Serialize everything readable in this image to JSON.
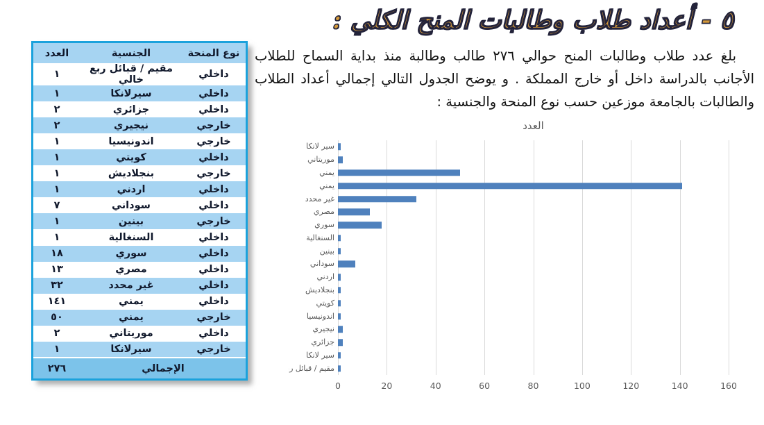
{
  "page": {
    "title": "٥ - أعداد طلاب وطالبات المنح الكلي :",
    "paragraph": "بلغ عدد طلاب وطالبات المنح حوالي ٢٧٦ طالب وطالبة منذ بداية  السماح للطلاب الأجانب بالدراسة داخل أو خارج المملكة . و يوضح الجدول التالي  إجمالي أعداد الطلاب والطالبات بالجامعة  موزعين حسب نوع المنحة والجنسية :"
  },
  "table": {
    "headers": {
      "grant_type": "نوع المنحة",
      "nationality": "الجنسية",
      "count": "العدد"
    },
    "rows": [
      {
        "grant_type": "داخلي",
        "nationality": "مقيم / قبائل ربع خالي",
        "count": "١"
      },
      {
        "grant_type": "داخلي",
        "nationality": "سيرلانكا",
        "count": "١"
      },
      {
        "grant_type": "داخلي",
        "nationality": "جزائري",
        "count": "٢"
      },
      {
        "grant_type": "خارجي",
        "nationality": "نيجيري",
        "count": "٢"
      },
      {
        "grant_type": "خارجي",
        "nationality": "اندونيسيا",
        "count": "١"
      },
      {
        "grant_type": "داخلي",
        "nationality": "كويتي",
        "count": "١"
      },
      {
        "grant_type": "خارجي",
        "nationality": "بنجلاديش",
        "count": "١"
      },
      {
        "grant_type": "داخلي",
        "nationality": "اردني",
        "count": "١"
      },
      {
        "grant_type": "داخلي",
        "nationality": "سوداني",
        "count": "٧"
      },
      {
        "grant_type": "خارجي",
        "nationality": "بينين",
        "count": "١"
      },
      {
        "grant_type": "داخلي",
        "nationality": "السنغالية",
        "count": "١"
      },
      {
        "grant_type": "داخلي",
        "nationality": "سوري",
        "count": "١٨"
      },
      {
        "grant_type": "داخلي",
        "nationality": "مصري",
        "count": "١٣"
      },
      {
        "grant_type": "داخلي",
        "nationality": "غير محدد",
        "count": "٣٢"
      },
      {
        "grant_type": "داخلي",
        "nationality": "يمني",
        "count": "١٤١"
      },
      {
        "grant_type": "خارجي",
        "nationality": "يمني",
        "count": "٥٠"
      },
      {
        "grant_type": "داخلي",
        "nationality": "موريتاني",
        "count": "٢"
      },
      {
        "grant_type": "خارجي",
        "nationality": "سيرلانكا",
        "count": "١"
      }
    ],
    "footer": {
      "label": "الإجمالي",
      "total": "٢٧٦"
    }
  },
  "chart_data": {
    "type": "bar",
    "orientation": "horizontal",
    "title": "العدد",
    "categories": [
      "سير لانكا",
      "موريتاني",
      "يمني",
      "يمني",
      "غير محدد",
      "مصري",
      "سوري",
      "السنغالية",
      "بينين",
      "سوداني",
      "اردني",
      "بنجلاديش",
      "كويتي",
      "اندونيسيا",
      "نيجيري",
      "جزائري",
      "سير لانكا",
      "مقيم / قبائل ربع خالي"
    ],
    "values": [
      1,
      2,
      50,
      141,
      32,
      13,
      18,
      1,
      1,
      7,
      1,
      1,
      1,
      1,
      2,
      2,
      1,
      1
    ],
    "xlabel": "",
    "ylabel": "",
    "xlim": [
      0,
      160
    ],
    "xticks": [
      0,
      20,
      40,
      60,
      80,
      100,
      120,
      140,
      160
    ],
    "grid": true,
    "legend": false
  },
  "colors": {
    "title_gold": "#D2983B",
    "table_border": "#1BA2DC",
    "stripe_blue": "#A6D4F2",
    "footer_blue": "#7CC3EA",
    "bar_blue": "#4F81BD",
    "grid_gray": "#D9D9D9"
  }
}
